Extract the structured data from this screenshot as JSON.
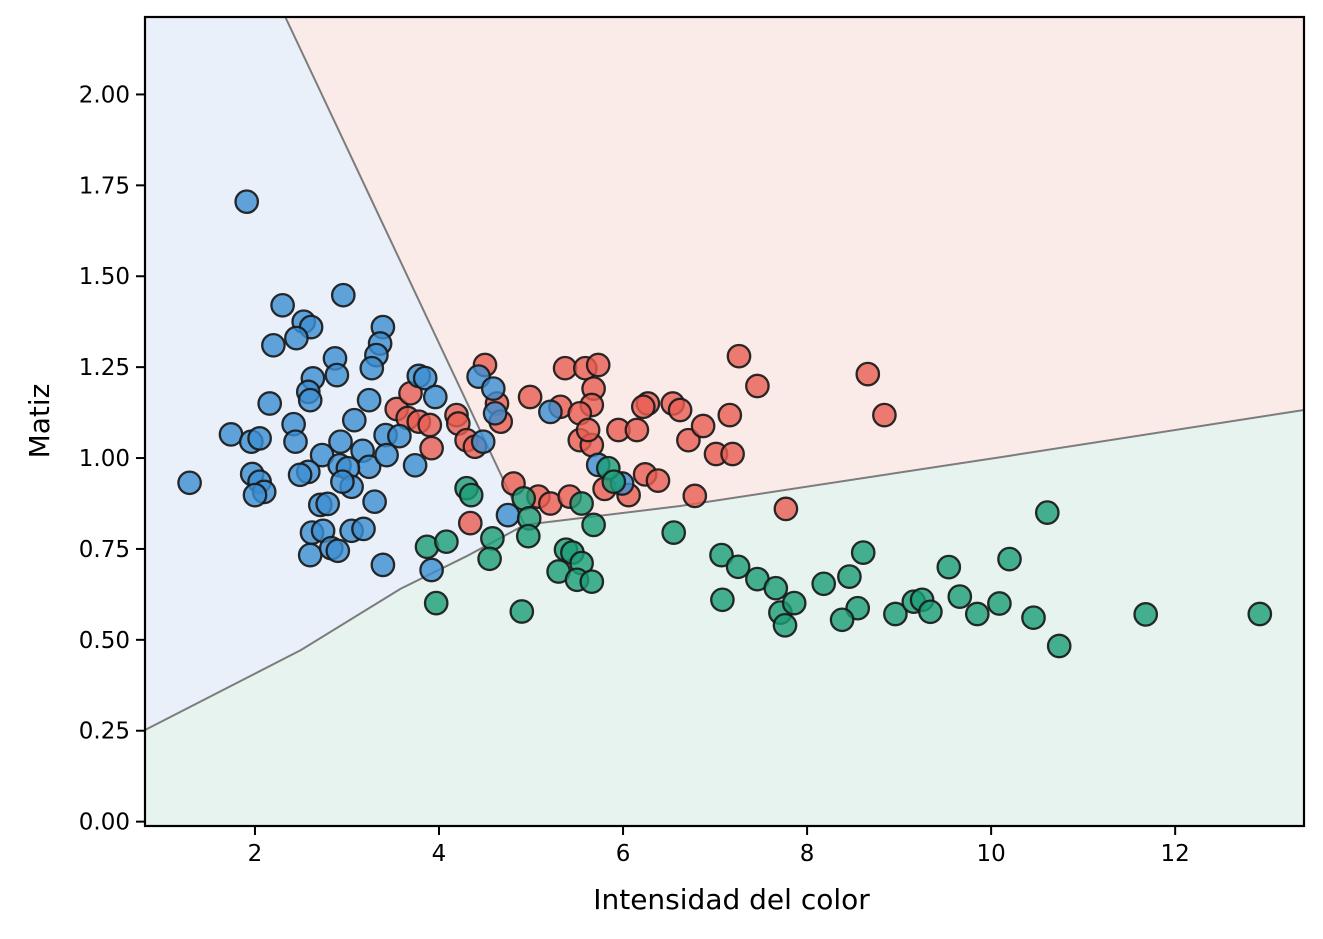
{
  "chart_data": {
    "type": "scatter",
    "title": "",
    "xlabel": "Intensidad del color",
    "ylabel": "Matiz",
    "xlim": [
      0.805,
      13.4
    ],
    "ylim": [
      -0.012,
      2.213
    ],
    "x_ticks": [
      2,
      4,
      6,
      8,
      10,
      12
    ],
    "x_tick_labels": [
      "2",
      "4",
      "6",
      "8",
      "10",
      "12"
    ],
    "y_ticks": [
      0.0,
      0.25,
      0.5,
      0.75,
      1.0,
      1.25,
      1.5,
      1.75,
      2.0
    ],
    "y_tick_labels": [
      "0.00",
      "0.25",
      "0.50",
      "0.75",
      "1.00",
      "1.25",
      "1.50",
      "1.75",
      "2.00"
    ],
    "grid": false,
    "legend": "none",
    "style": {
      "marker_radius": 11.2,
      "marker_edge_color": "rgba(25,25,25,0.92)",
      "marker_edge_width": 2.3,
      "marker_fill_opacity": 0.8,
      "boundary_line_color": "#7c7c7c",
      "boundary_line_width": 2,
      "spine_color": "#000000",
      "spine_width": 2.2,
      "tick_length": 8,
      "tick_label_size": 23,
      "axis_label_size": 28
    },
    "regions": [
      {
        "name": "region-clase-azul",
        "color": "#eaf0f9",
        "polygon": [
          [
            0.805,
            2.213
          ],
          [
            2.33,
            2.213
          ],
          [
            4.93,
            0.816
          ],
          [
            4.3,
            0.73
          ],
          [
            3.58,
            0.64
          ],
          [
            2.5,
            0.472
          ],
          [
            0.805,
            0.252
          ]
        ]
      },
      {
        "name": "region-clase-roja",
        "color": "#fbebe8",
        "polygon": [
          [
            2.33,
            2.213
          ],
          [
            13.4,
            2.213
          ],
          [
            13.4,
            1.132
          ],
          [
            10.17,
            1.005
          ],
          [
            6.62,
            0.868
          ],
          [
            4.93,
            0.816
          ]
        ]
      },
      {
        "name": "region-clase-verde",
        "color": "#e7f3ef",
        "polygon": [
          [
            0.805,
            0.252
          ],
          [
            2.5,
            0.472
          ],
          [
            3.58,
            0.64
          ],
          [
            4.3,
            0.73
          ],
          [
            4.93,
            0.816
          ],
          [
            6.62,
            0.868
          ],
          [
            10.17,
            1.005
          ],
          [
            13.4,
            1.132
          ],
          [
            13.4,
            -0.012
          ],
          [
            0.805,
            -0.012
          ]
        ]
      }
    ],
    "boundaries": [
      {
        "name": "frontera-azul-roja",
        "points": [
          [
            2.33,
            2.213
          ],
          [
            4.93,
            0.816
          ]
        ]
      },
      {
        "name": "frontera-azul-verde",
        "points": [
          [
            0.805,
            0.252
          ],
          [
            2.5,
            0.472
          ],
          [
            3.58,
            0.64
          ],
          [
            4.3,
            0.73
          ],
          [
            4.93,
            0.816
          ]
        ]
      },
      {
        "name": "frontera-roja-verde",
        "points": [
          [
            4.93,
            0.816
          ],
          [
            6.62,
            0.868
          ],
          [
            10.17,
            1.005
          ],
          [
            13.4,
            1.132
          ]
        ]
      }
    ],
    "series": [
      {
        "name": "clase-roja",
        "color": "#e85e52",
        "points": [
          [
            4.5,
            1.256
          ],
          [
            5.37,
            1.247
          ],
          [
            5.59,
            1.247
          ],
          [
            5.73,
            1.256
          ],
          [
            5.68,
            1.191
          ],
          [
            4.99,
            1.168
          ],
          [
            6.27,
            1.15
          ],
          [
            6.54,
            1.15
          ],
          [
            4.63,
            1.15
          ],
          [
            5.32,
            1.141
          ],
          [
            5.66,
            1.146
          ],
          [
            5.53,
            1.123
          ],
          [
            3.54,
            1.135
          ],
          [
            3.69,
            1.178
          ],
          [
            3.66,
            1.11
          ],
          [
            3.78,
            1.1
          ],
          [
            3.9,
            1.091
          ],
          [
            3.92,
            1.027
          ],
          [
            4.19,
            1.118
          ],
          [
            4.21,
            1.095
          ],
          [
            4.3,
            1.049
          ],
          [
            4.39,
            1.031
          ],
          [
            4.34,
            0.821
          ],
          [
            4.81,
            0.93
          ],
          [
            5.08,
            0.894
          ],
          [
            5.21,
            0.875
          ],
          [
            5.42,
            0.894
          ],
          [
            5.53,
            1.049
          ],
          [
            5.66,
            1.036
          ],
          [
            5.62,
            1.077
          ],
          [
            5.95,
            1.077
          ],
          [
            6.15,
            1.077
          ],
          [
            6.22,
            1.141
          ],
          [
            5.8,
            0.915
          ],
          [
            6.06,
            0.898
          ],
          [
            6.24,
            0.955
          ],
          [
            6.38,
            0.938
          ],
          [
            6.62,
            1.132
          ],
          [
            6.71,
            1.049
          ],
          [
            6.87,
            1.088
          ],
          [
            7.16,
            1.118
          ],
          [
            7.01,
            1.011
          ],
          [
            7.19,
            1.011
          ],
          [
            7.26,
            1.28
          ],
          [
            7.46,
            1.198
          ],
          [
            8.66,
            1.231
          ],
          [
            8.84,
            1.118
          ],
          [
            6.78,
            0.896
          ],
          [
            7.77,
            0.86
          ],
          [
            4.67,
            1.1
          ]
        ]
      },
      {
        "name": "clase-azul",
        "color": "#3c8ed2",
        "points": [
          [
            1.91,
            1.705
          ],
          [
            2.3,
            1.42
          ],
          [
            2.96,
            1.448
          ],
          [
            2.53,
            1.375
          ],
          [
            2.61,
            1.36
          ],
          [
            2.45,
            1.33
          ],
          [
            2.2,
            1.31
          ],
          [
            3.39,
            1.36
          ],
          [
            3.36,
            1.315
          ],
          [
            3.32,
            1.283
          ],
          [
            3.27,
            1.247
          ],
          [
            2.87,
            1.274
          ],
          [
            2.89,
            1.228
          ],
          [
            2.63,
            1.219
          ],
          [
            2.58,
            1.182
          ],
          [
            2.6,
            1.159
          ],
          [
            3.78,
            1.226
          ],
          [
            3.85,
            1.22
          ],
          [
            3.24,
            1.159
          ],
          [
            2.16,
            1.15
          ],
          [
            1.29,
            0.932
          ],
          [
            1.74,
            1.065
          ],
          [
            1.96,
            1.045
          ],
          [
            2.05,
            1.054
          ],
          [
            2.42,
            1.093
          ],
          [
            2.44,
            1.045
          ],
          [
            3.08,
            1.104
          ],
          [
            2.93,
            1.045
          ],
          [
            3.17,
            1.02
          ],
          [
            3.42,
            1.063
          ],
          [
            3.57,
            1.06
          ],
          [
            3.24,
            0.976
          ],
          [
            3.43,
            1.008
          ],
          [
            3.74,
            0.98
          ],
          [
            2.73,
            1.008
          ],
          [
            2.92,
            0.98
          ],
          [
            3.01,
            0.972
          ],
          [
            2.58,
            0.962
          ],
          [
            2.49,
            0.954
          ],
          [
            1.97,
            0.956
          ],
          [
            2.05,
            0.935
          ],
          [
            2.1,
            0.907
          ],
          [
            2.0,
            0.898
          ],
          [
            3.05,
            0.921
          ],
          [
            2.95,
            0.935
          ],
          [
            3.3,
            0.88
          ],
          [
            2.71,
            0.871
          ],
          [
            2.79,
            0.874
          ],
          [
            2.62,
            0.795
          ],
          [
            2.74,
            0.8
          ],
          [
            3.05,
            0.8
          ],
          [
            3.18,
            0.805
          ],
          [
            2.6,
            0.733
          ],
          [
            2.83,
            0.752
          ],
          [
            2.9,
            0.745
          ],
          [
            3.39,
            0.706
          ],
          [
            3.92,
            0.692
          ],
          [
            4.43,
            1.224
          ],
          [
            4.59,
            1.191
          ],
          [
            3.96,
            1.168
          ],
          [
            4.61,
            1.123
          ],
          [
            5.21,
            1.127
          ],
          [
            4.48,
            1.045
          ],
          [
            4.75,
            0.843
          ],
          [
            5.73,
            0.981
          ],
          [
            5.99,
            0.93
          ]
        ]
      },
      {
        "name": "clase-verde",
        "color": "#1b9e77",
        "points": [
          [
            4.3,
            0.917
          ],
          [
            4.35,
            0.898
          ],
          [
            4.92,
            0.889
          ],
          [
            5.55,
            0.875
          ],
          [
            5.84,
            0.972
          ],
          [
            5.9,
            0.935
          ],
          [
            4.98,
            0.834
          ],
          [
            4.97,
            0.785
          ],
          [
            4.58,
            0.779
          ],
          [
            4.55,
            0.723
          ],
          [
            3.87,
            0.756
          ],
          [
            4.08,
            0.77
          ],
          [
            3.97,
            0.601
          ],
          [
            4.9,
            0.578
          ],
          [
            5.38,
            0.748
          ],
          [
            5.45,
            0.74
          ],
          [
            5.3,
            0.688
          ],
          [
            5.55,
            0.711
          ],
          [
            5.5,
            0.665
          ],
          [
            5.66,
            0.66
          ],
          [
            5.68,
            0.816
          ],
          [
            6.55,
            0.795
          ],
          [
            7.07,
            0.733
          ],
          [
            7.25,
            0.701
          ],
          [
            7.46,
            0.667
          ],
          [
            7.66,
            0.642
          ],
          [
            7.08,
            0.61
          ],
          [
            7.71,
            0.575
          ],
          [
            7.76,
            0.54
          ],
          [
            7.86,
            0.601
          ],
          [
            8.18,
            0.654
          ],
          [
            8.46,
            0.674
          ],
          [
            8.61,
            0.74
          ],
          [
            8.55,
            0.587
          ],
          [
            8.38,
            0.555
          ],
          [
            8.96,
            0.571
          ],
          [
            9.16,
            0.605
          ],
          [
            9.25,
            0.61
          ],
          [
            9.34,
            0.577
          ],
          [
            9.54,
            0.7
          ],
          [
            9.66,
            0.619
          ],
          [
            9.85,
            0.571
          ],
          [
            10.09,
            0.6
          ],
          [
            10.2,
            0.722
          ],
          [
            10.46,
            0.561
          ],
          [
            10.61,
            0.85
          ],
          [
            10.74,
            0.483
          ],
          [
            11.68,
            0.57
          ],
          [
            12.92,
            0.571
          ]
        ]
      }
    ]
  }
}
